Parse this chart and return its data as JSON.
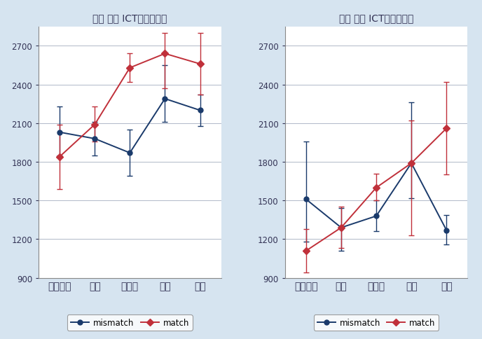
{
  "left_title": "賃金 男性 ICTスキル保有",
  "right_title": "賃金 女性 ICTスキル保有",
  "categories": [
    "全くない",
    "単純",
    "中程度",
    "複雑",
    "高度"
  ],
  "ylim": [
    900,
    2850
  ],
  "yticks": [
    900,
    1200,
    1500,
    1800,
    2100,
    2400,
    2700
  ],
  "left_mismatch_y": [
    2030,
    1980,
    1870,
    2290,
    2200
  ],
  "left_mismatch_yerr_lo": [
    180,
    130,
    180,
    180,
    120
  ],
  "left_mismatch_yerr_hi": [
    200,
    130,
    180,
    260,
    120
  ],
  "left_match_y": [
    1840,
    2090,
    2530,
    2640,
    2560
  ],
  "left_match_yerr_lo": [
    250,
    130,
    110,
    270,
    240
  ],
  "left_match_yerr_hi": [
    250,
    140,
    110,
    160,
    240
  ],
  "right_mismatch_y": [
    1510,
    1290,
    1380,
    1790,
    1270
  ],
  "right_mismatch_yerr_lo": [
    330,
    180,
    120,
    270,
    110
  ],
  "right_mismatch_yerr_hi": [
    450,
    150,
    120,
    470,
    120
  ],
  "right_match_y": [
    1110,
    1290,
    1600,
    1790,
    2060
  ],
  "right_match_yerr_lo": [
    170,
    160,
    100,
    560,
    360
  ],
  "right_match_yerr_hi": [
    170,
    160,
    110,
    330,
    360
  ],
  "mismatch_color": "#1a3a6b",
  "match_color": "#c0303a",
  "bg_color": "#d6e4f0",
  "plot_bg_color": "#ffffff",
  "grid_color": "#b0b8c8",
  "legend_bg": "#ffffff",
  "title_color": "#333355",
  "tick_color": "#333355"
}
